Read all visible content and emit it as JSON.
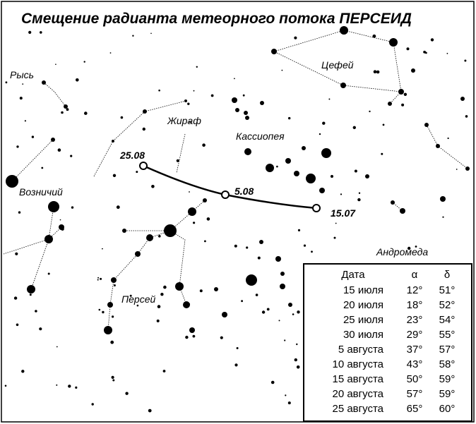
{
  "title": "Смещение  радианта метеорного потока ПЕРСЕИД",
  "constellations": [
    "Рысь",
    "Жираф",
    "Цефей",
    "Кассиопея",
    "Возничий",
    "Персей",
    "Андромеда"
  ],
  "path_labels": [
    "25.08",
    "5.08",
    "15.07"
  ],
  "table": {
    "header": [
      "Дата",
      "α",
      "δ"
    ],
    "rows": [
      [
        "15 июля",
        "12°",
        "51°"
      ],
      [
        "20 июля",
        "18°",
        "52°"
      ],
      [
        "25 июля",
        "23°",
        "54°"
      ],
      [
        "30 июля",
        "29°",
        "55°"
      ],
      [
        "5 августа",
        "37°",
        "57°"
      ],
      [
        "10 августа",
        "43°",
        "58°"
      ],
      [
        "15 августа",
        "50°",
        "59°"
      ],
      [
        "20 августа",
        "57°",
        "59°"
      ],
      [
        "25 августа",
        "65°",
        "60°"
      ]
    ]
  }
}
